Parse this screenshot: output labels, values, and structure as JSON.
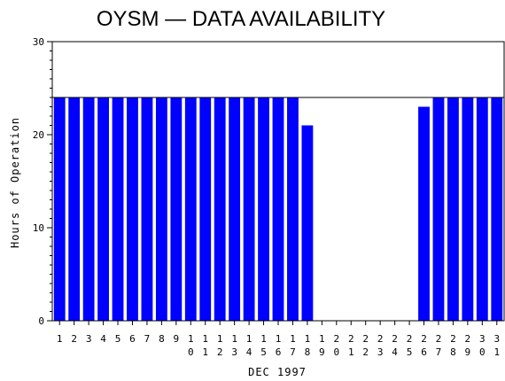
{
  "chart_data": {
    "type": "bar",
    "title": "OYSM — DATA AVAILABILITY",
    "xlabel": "DEC 1997",
    "ylabel": "Hours of Operation",
    "ylim": [
      0,
      30
    ],
    "yticks": [
      0,
      10,
      20,
      30
    ],
    "reference_line": 24,
    "bar_color": "#0000ff",
    "categories": [
      "1",
      "2",
      "3",
      "4",
      "5",
      "6",
      "7",
      "8",
      "9",
      "10",
      "11",
      "12",
      "13",
      "14",
      "15",
      "16",
      "17",
      "18",
      "19",
      "20",
      "21",
      "22",
      "23",
      "24",
      "25",
      "26",
      "27",
      "28",
      "29",
      "30",
      "31"
    ],
    "values": [
      24,
      24,
      24,
      24,
      24,
      24,
      24,
      24,
      24,
      24,
      24,
      24,
      24,
      24,
      24,
      24,
      24,
      21,
      0,
      0,
      0,
      0,
      0,
      0,
      0,
      23,
      24,
      24,
      24,
      24,
      24
    ]
  }
}
